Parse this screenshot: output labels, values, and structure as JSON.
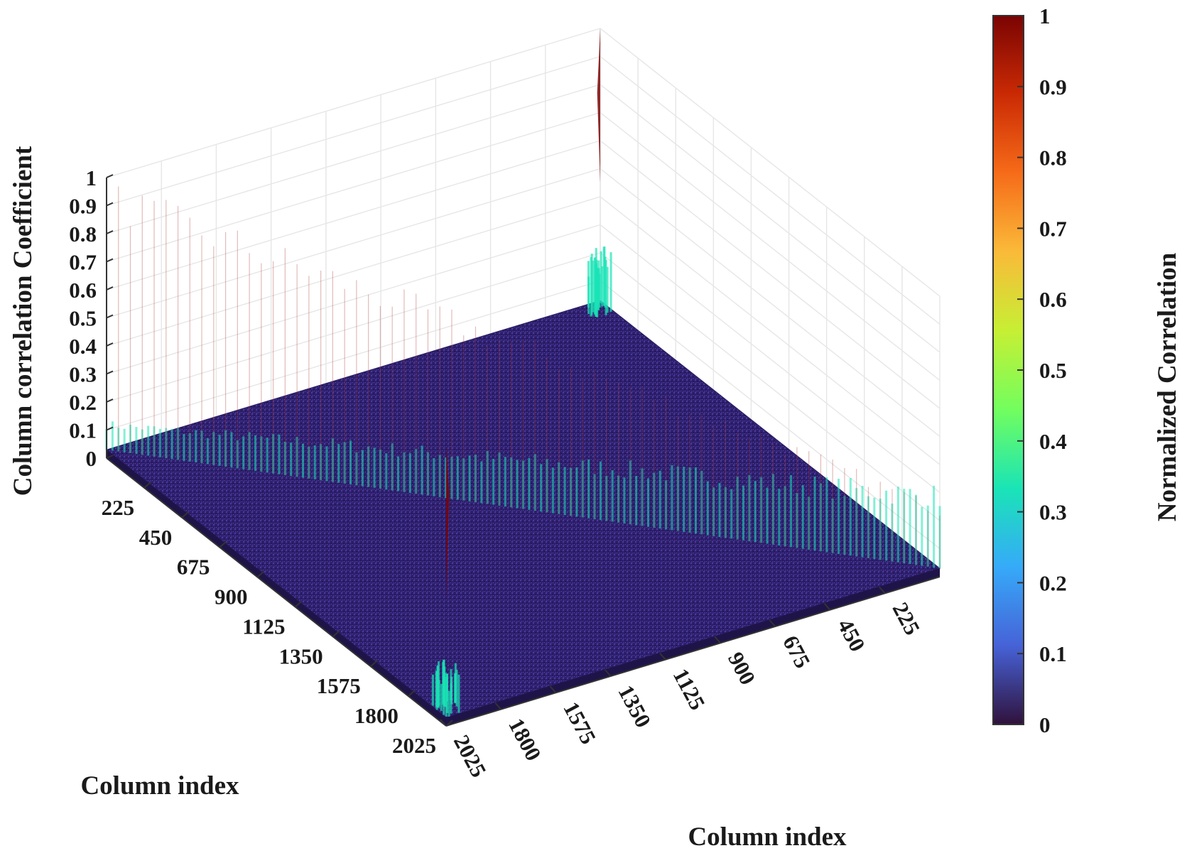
{
  "chart_data": {
    "type": "surface3d",
    "title": "",
    "zlabel": "Column correlation Coefficient",
    "xlabel": "Column index",
    "ylabel": "Column index",
    "colorbar_label": "Normalized Correlation",
    "zlim": [
      0,
      1
    ],
    "xlim": [
      0,
      2025
    ],
    "ylim": [
      0,
      2025
    ],
    "z_ticks": [
      "0",
      "0.1",
      "0.2",
      "0.3",
      "0.4",
      "0.5",
      "0.6",
      "0.7",
      "0.8",
      "0.9",
      "1"
    ],
    "x_ticks": [
      "225",
      "450",
      "675",
      "900",
      "1125",
      "1350",
      "1575",
      "1800",
      "2025"
    ],
    "y_ticks": [
      "225",
      "450",
      "675",
      "900",
      "1125",
      "1350",
      "1575",
      "1800",
      "2025"
    ],
    "colorbar_ticks": [
      "0",
      "0.1",
      "0.2",
      "0.3",
      "0.4",
      "0.5",
      "0.6",
      "0.7",
      "0.8",
      "0.9",
      "1"
    ],
    "colormap": "turbo",
    "colormap_stops": [
      "#30123b",
      "#4662d7",
      "#36aaf9",
      "#1ae4b6",
      "#72fe5e",
      "#c7ef34",
      "#faba39",
      "#f66b19",
      "#ca2a04",
      "#7a0403"
    ],
    "grid": true,
    "background_level": 0.03,
    "features": [
      {
        "kind": "diagonal_ridge",
        "from": [
          0,
          0
        ],
        "to": [
          2025,
          2025
        ],
        "peak": 1.0,
        "body": 0.3
      },
      {
        "kind": "corner_spike",
        "at": [
          0,
          2025
        ],
        "peak": 1.0,
        "body": 0.25
      },
      {
        "kind": "corner_spike",
        "at": [
          2025,
          0
        ],
        "peak": 1.0,
        "body": 0.2
      }
    ]
  }
}
